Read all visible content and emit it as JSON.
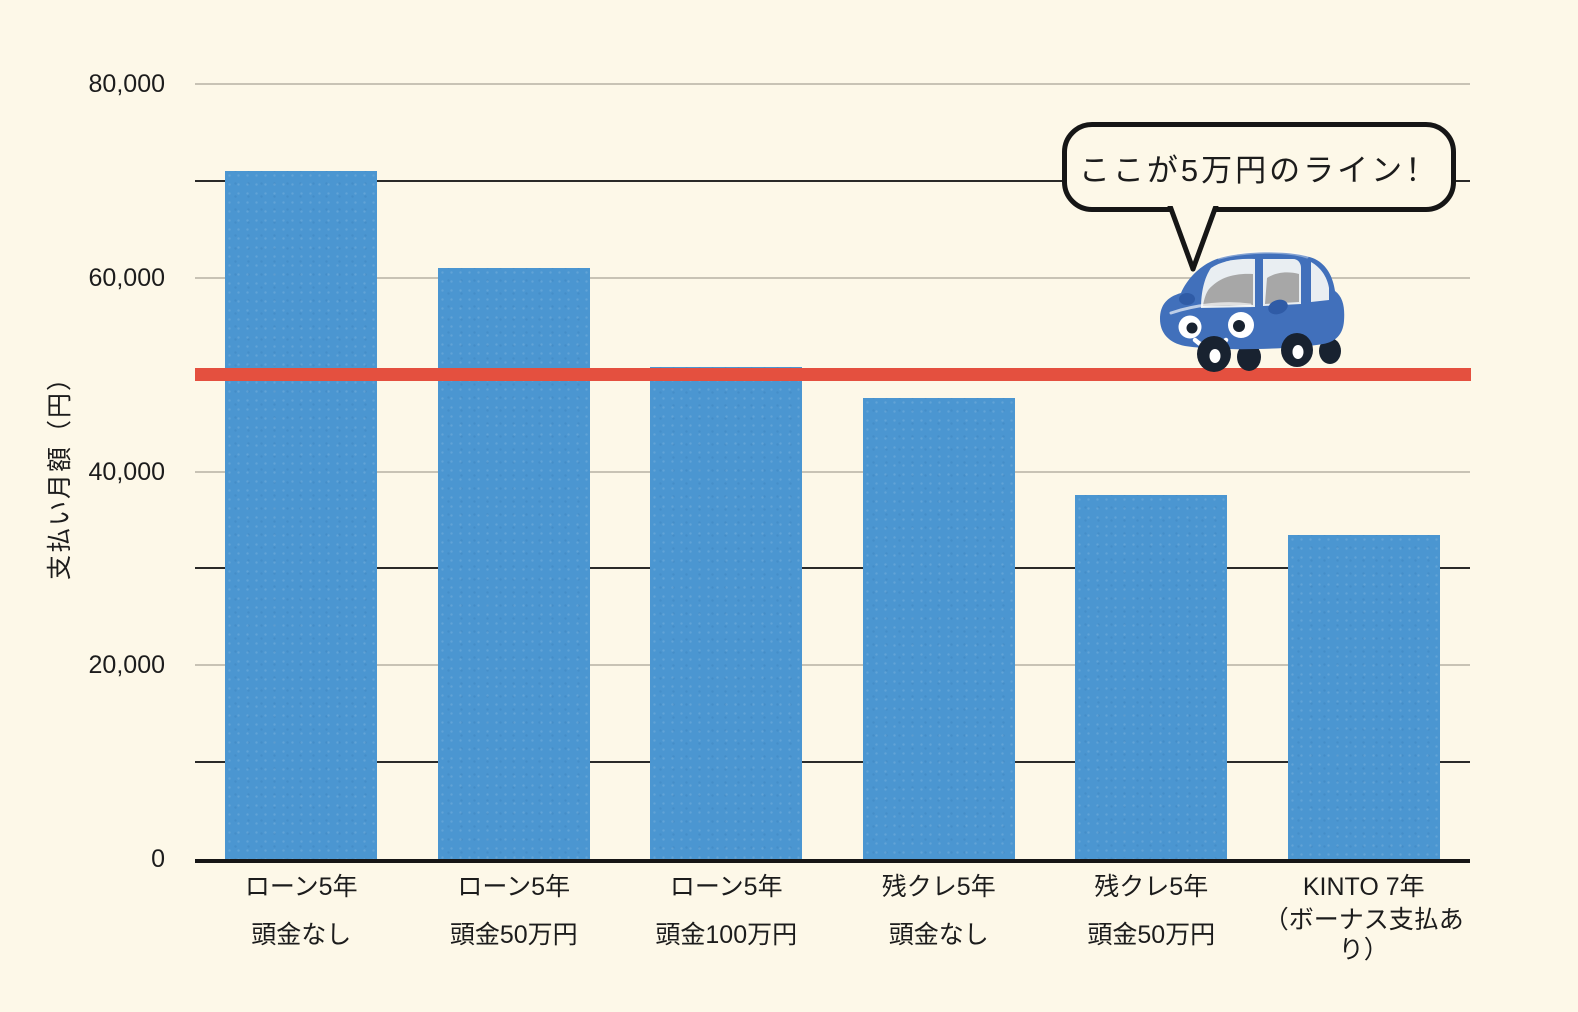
{
  "background_color": "#fdf8e8",
  "chart_data": {
    "type": "bar",
    "title": "",
    "xlabel": "",
    "ylabel": "支払い月額（円）",
    "ylim": [
      0,
      80000
    ],
    "grid": "on",
    "grid_interval": 10000,
    "legend": "none",
    "ytick_labels": [
      "0",
      "20,000",
      "40,000",
      "60,000",
      "80,000"
    ],
    "ytick_values": [
      0,
      20000,
      40000,
      60000,
      80000
    ],
    "categories": [
      {
        "line1": "ローン5年",
        "line2": "頭金なし",
        "compact": false
      },
      {
        "line1": "ローン5年",
        "line2": "頭金50万円",
        "compact": false
      },
      {
        "line1": "ローン5年",
        "line2": "頭金100万円",
        "compact": false
      },
      {
        "line1": "残クレ5年",
        "line2": "頭金なし",
        "compact": false
      },
      {
        "line1": "残クレ5年",
        "line2": "頭金50万円",
        "compact": false
      },
      {
        "line1": "KINTO 7年",
        "line2": "（ボーナス支払あり）",
        "compact": true
      }
    ],
    "values": [
      71000,
      61000,
      50800,
      47600,
      37600,
      33400
    ],
    "bar_color": "#4b96d1",
    "grid_color_major": "#c8c3b5",
    "grid_color_minor": "#2a2a28",
    "axis_color": "#161616",
    "reference_line": {
      "value": 50000,
      "color": "#e4503f"
    }
  },
  "annotation": {
    "speech_bubble_text": "ここが5万円のライン！",
    "mascot": "blue-car-illustration"
  },
  "car_colors": {
    "body": "#4170bb",
    "accent": "#2f5ba6",
    "window": "#e9eef2",
    "interior": "#a7a7a7",
    "wheel": "#182230",
    "hub": "#ffffff",
    "face": "#ffffff"
  }
}
